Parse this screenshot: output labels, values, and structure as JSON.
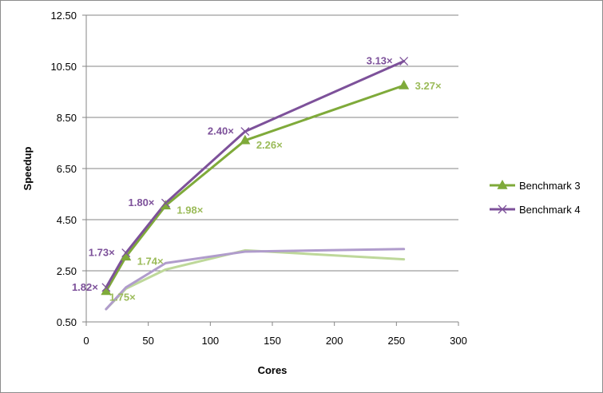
{
  "chart_data": {
    "type": "line",
    "title": "",
    "xlabel": "Cores",
    "ylabel": "Speedup",
    "xlim": [
      0,
      300
    ],
    "ylim": [
      0.5,
      12.5
    ],
    "x_ticks": [
      "0",
      "50",
      "100",
      "150",
      "200",
      "250",
      "300"
    ],
    "y_ticks": [
      "0.50",
      "2.50",
      "4.50",
      "6.50",
      "8.50",
      "10.50",
      "12.50"
    ],
    "grid": "horizontal",
    "legend_position": "right",
    "series": [
      {
        "name": "Benchmark 3",
        "color": "#7faa3a",
        "marker": "triangle",
        "x": [
          16,
          32,
          64,
          128,
          256
        ],
        "values": [
          1.7,
          3.05,
          5.05,
          7.6,
          9.75
        ],
        "labels": [
          "1.75×",
          "1.74×",
          "1.98×",
          "2.26×",
          "3.27×"
        ]
      },
      {
        "name": "Benchmark 4",
        "color": "#7d519a",
        "marker": "x",
        "x": [
          16,
          32,
          64,
          128,
          256
        ],
        "values": [
          1.85,
          3.2,
          5.15,
          7.95,
          10.7
        ],
        "labels": [
          "1.82×",
          "1.73×",
          "1.80×",
          "2.40×",
          "3.13×"
        ]
      },
      {
        "color": "#bed89a",
        "marker": "none",
        "x": [
          16,
          32,
          64,
          128,
          256
        ],
        "values": [
          1.0,
          1.8,
          2.55,
          3.3,
          2.95
        ]
      },
      {
        "color": "#b09ccc",
        "marker": "none",
        "x": [
          16,
          32,
          64,
          128,
          256
        ],
        "values": [
          1.0,
          1.85,
          2.8,
          3.25,
          3.35
        ]
      }
    ]
  }
}
